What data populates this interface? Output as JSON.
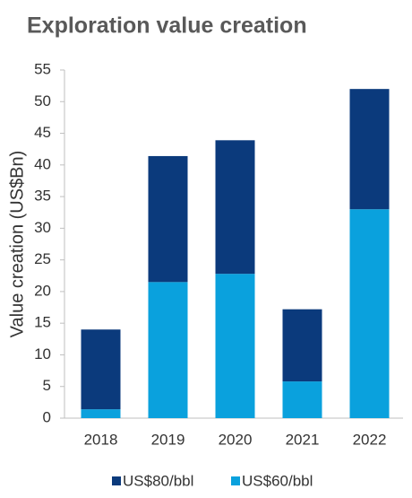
{
  "chart_data": {
    "type": "stacked_bar",
    "title": "Exploration value creation",
    "y_label": "Value creation (US$Bn)",
    "categories": [
      "2018",
      "2019",
      "2020",
      "2021",
      "2022"
    ],
    "series": [
      {
        "name": "US$80/bbl",
        "color": "#0b3a7c",
        "values": [
          12.6,
          19.9,
          21.1,
          11.4,
          19.0
        ]
      },
      {
        "name": "US$60/bbl",
        "color": "#0aa1dd",
        "values": [
          1.4,
          21.5,
          22.8,
          5.8,
          33.0
        ]
      }
    ],
    "ylim": [
      0,
      55
    ],
    "yticks": [
      0,
      5,
      10,
      15,
      20,
      25,
      30,
      35,
      40,
      45,
      50,
      55
    ],
    "grid": false
  }
}
